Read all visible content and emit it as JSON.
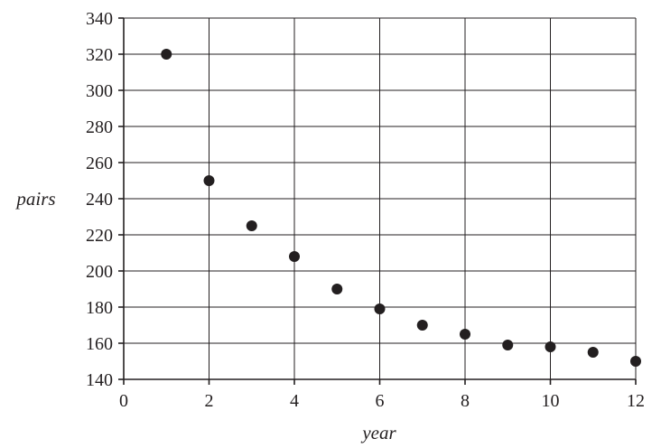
{
  "chart_data": {
    "type": "scatter",
    "title": "",
    "xlabel": "year",
    "ylabel": "pairs",
    "xlim": [
      0,
      12
    ],
    "ylim": [
      140,
      340
    ],
    "x_ticks": [
      0,
      2,
      4,
      6,
      8,
      10,
      12
    ],
    "y_ticks": [
      140,
      160,
      180,
      200,
      220,
      240,
      260,
      280,
      300,
      320,
      340
    ],
    "grid": true,
    "marker_color": "#231f20",
    "series": [
      {
        "x": [
          1,
          2,
          3,
          4,
          5,
          6,
          7,
          8,
          9,
          10,
          11,
          12
        ],
        "y": [
          320,
          250,
          225,
          208,
          190,
          179,
          170,
          165,
          159,
          158,
          155,
          150
        ]
      }
    ]
  }
}
